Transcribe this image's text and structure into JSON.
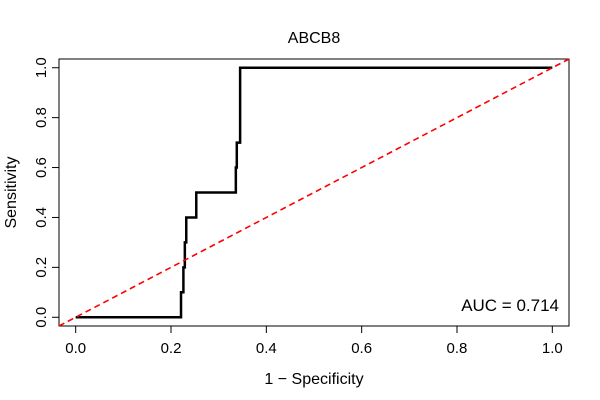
{
  "chart_data": {
    "type": "line",
    "title": "ABCB8",
    "xlabel": "1 − Specificity",
    "ylabel": "Sensitivity",
    "xlim": [
      -0.035,
      1.035
    ],
    "ylim": [
      -0.035,
      1.035
    ],
    "xticks": [
      {
        "value": 0.0,
        "label": "0.0"
      },
      {
        "value": 0.2,
        "label": "0.2"
      },
      {
        "value": 0.4,
        "label": "0.4"
      },
      {
        "value": 0.6,
        "label": "0.6"
      },
      {
        "value": 0.8,
        "label": "0.8"
      },
      {
        "value": 1.0,
        "label": "1.0"
      }
    ],
    "yticks": [
      {
        "value": 0.0,
        "label": "0.0"
      },
      {
        "value": 0.2,
        "label": "0.2"
      },
      {
        "value": 0.4,
        "label": "0.4"
      },
      {
        "value": 0.6,
        "label": "0.6"
      },
      {
        "value": 0.8,
        "label": "0.8"
      },
      {
        "value": 1.0,
        "label": "1.0"
      }
    ],
    "grid": false,
    "series": [
      {
        "color": "#000000",
        "style": "solid",
        "x": [
          0.0,
          0.221,
          0.221,
          0.226,
          0.226,
          0.229,
          0.229,
          0.232,
          0.232,
          0.253,
          0.253,
          0.336,
          0.336,
          0.338,
          0.338,
          0.345,
          0.345,
          1.0
        ],
        "y": [
          0.0,
          0.0,
          0.1,
          0.1,
          0.2,
          0.2,
          0.3,
          0.3,
          0.4,
          0.4,
          0.5,
          0.5,
          0.6,
          0.6,
          0.7,
          0.7,
          1.0,
          1.0
        ]
      },
      {
        "color": "#ff0000",
        "style": "dashed",
        "x": [
          -0.035,
          1.035
        ],
        "y": [
          -0.035,
          1.035
        ]
      }
    ],
    "annotation": "AUC = 0.714"
  }
}
